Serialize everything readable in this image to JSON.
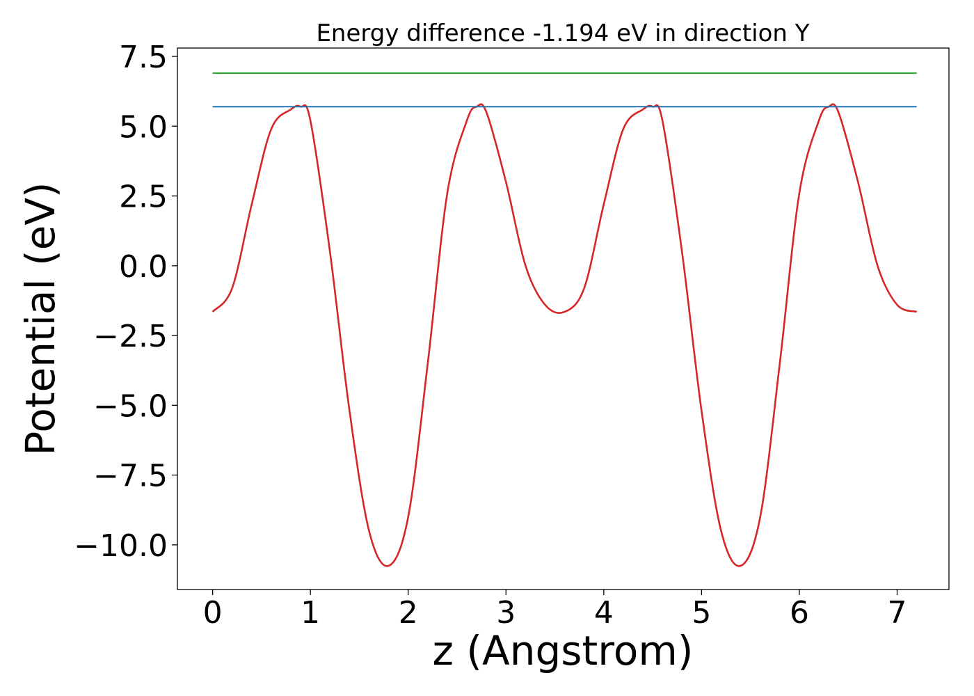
{
  "chart_data": {
    "type": "line",
    "title": "Energy difference -1.194 eV in direction Y",
    "xlabel": "z (Angstrom)",
    "ylabel": "Potential (eV)",
    "xlim": [
      -0.36,
      7.53
    ],
    "ylim": [
      -11.6,
      7.8
    ],
    "x_ticks": [
      0,
      1,
      2,
      3,
      4,
      5,
      6,
      7
    ],
    "x_tick_labels": [
      "0",
      "1",
      "2",
      "3",
      "4",
      "5",
      "6",
      "7"
    ],
    "y_ticks": [
      -10.0,
      -7.5,
      -5.0,
      -2.5,
      0.0,
      2.5,
      5.0,
      7.5
    ],
    "y_tick_labels": [
      "−10.0",
      "−7.5",
      "−5.0",
      "−2.5",
      "0.0",
      "2.5",
      "5.0",
      "7.5"
    ],
    "grid": false,
    "series": [
      {
        "color": "#d62728",
        "x": [
          0.0,
          0.2,
          0.4,
          0.6,
          0.8,
          0.9,
          1.0,
          1.2,
          1.4,
          1.6,
          1.8,
          2.0,
          2.2,
          2.4,
          2.6,
          2.7,
          2.8,
          3.0,
          3.2,
          3.4,
          3.6,
          3.8,
          4.0,
          4.2,
          4.4,
          4.5,
          4.6,
          4.8,
          5.0,
          5.2,
          5.4,
          5.6,
          5.8,
          6.0,
          6.2,
          6.3,
          6.4,
          6.6,
          6.8,
          7.0,
          7.2
        ],
        "y": [
          -1.65,
          -0.8,
          2.2,
          4.9,
          5.6,
          5.7,
          5.2,
          0.5,
          -5.2,
          -9.5,
          -10.75,
          -9.0,
          -3.5,
          2.6,
          5.2,
          5.7,
          5.5,
          3.0,
          0.0,
          -1.4,
          -1.65,
          -0.8,
          2.2,
          4.9,
          5.6,
          5.7,
          5.2,
          0.5,
          -5.2,
          -9.5,
          -10.75,
          -9.0,
          -3.5,
          2.6,
          5.2,
          5.7,
          5.5,
          3.0,
          0.0,
          -1.4,
          -1.65
        ]
      },
      {
        "color": "#1f77b4",
        "x": [
          0.0,
          7.2
        ],
        "y": [
          5.7,
          5.7
        ]
      },
      {
        "color": "#2ca02c",
        "x": [
          0.0,
          7.2
        ],
        "y": [
          6.9,
          6.9
        ]
      }
    ]
  }
}
